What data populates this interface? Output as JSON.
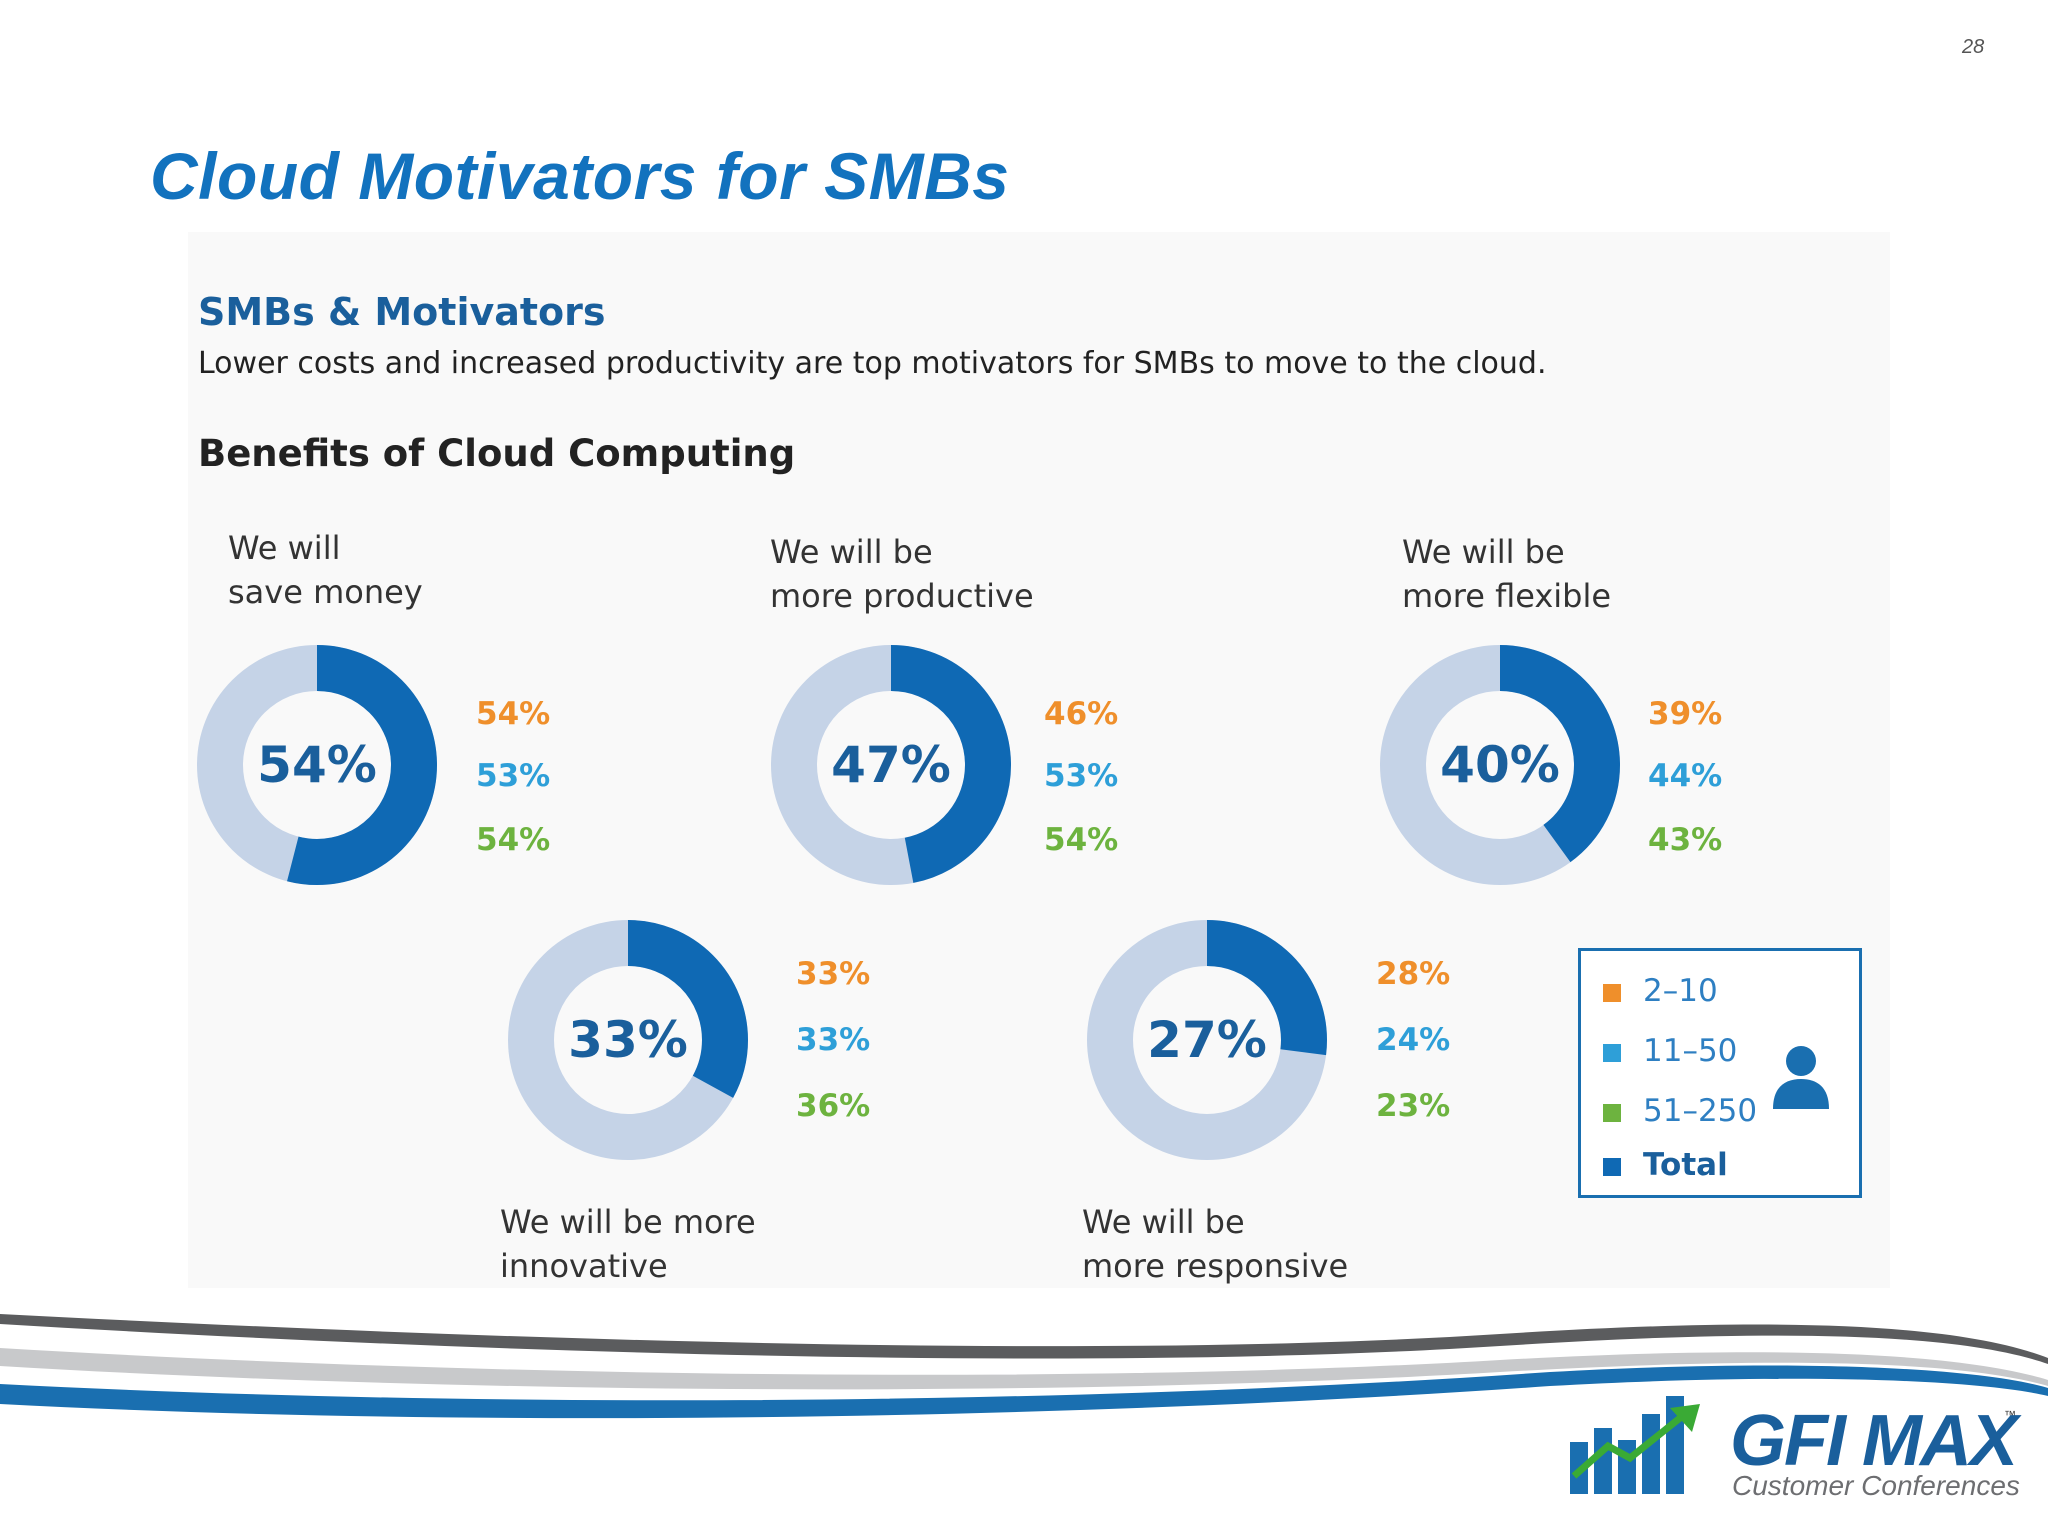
{
  "page_number": "28",
  "slide_title": "Cloud Motivators for SMBs",
  "figure": {
    "heading": "SMBs & Motivators",
    "subtitle": "Lower costs and increased productivity are top motivators for SMBs to move to the cloud.",
    "chart_heading": "Benefits of Cloud Computing"
  },
  "colors": {
    "total_arc": "#0f69b4",
    "remainder_arc": "#c5d3e7",
    "center_text": "#1a5f9c",
    "size_2_10": "#ef8f2b",
    "size_11_50": "#2e9fd8",
    "size_51_250": "#6db33f",
    "title": "#1272be"
  },
  "chart_data": {
    "type": "pie",
    "variant": "donut",
    "title": "Benefits of Cloud Computing",
    "legend": {
      "placement": "bottom-right",
      "entries": [
        "2–10",
        "11–50",
        "51–250",
        "Total"
      ],
      "icon": "person-icon"
    },
    "series_names": [
      "2–10",
      "11–50",
      "51–250",
      "Total"
    ],
    "donuts": [
      {
        "label": "We will\nsave money",
        "total": 54,
        "total_label": "54%",
        "segments": [
          {
            "group": "2–10",
            "value": 54,
            "label": "54%"
          },
          {
            "group": "11–50",
            "value": 53,
            "label": "53%"
          },
          {
            "group": "51–250",
            "value": 54,
            "label": "54%"
          }
        ]
      },
      {
        "label": "We will be\nmore productive",
        "total": 47,
        "total_label": "47%",
        "segments": [
          {
            "group": "2–10",
            "value": 46,
            "label": "46%"
          },
          {
            "group": "11–50",
            "value": 53,
            "label": "53%"
          },
          {
            "group": "51–250",
            "value": 54,
            "label": "54%"
          }
        ]
      },
      {
        "label": "We will be\nmore flexible",
        "total": 40,
        "total_label": "40%",
        "segments": [
          {
            "group": "2–10",
            "value": 39,
            "label": "39%"
          },
          {
            "group": "11–50",
            "value": 44,
            "label": "44%"
          },
          {
            "group": "51–250",
            "value": 43,
            "label": "43%"
          }
        ]
      },
      {
        "label": "We will be more\ninnovative",
        "total": 33,
        "total_label": "33%",
        "segments": [
          {
            "group": "2–10",
            "value": 33,
            "label": "33%"
          },
          {
            "group": "11–50",
            "value": 33,
            "label": "33%"
          },
          {
            "group": "51–250",
            "value": 36,
            "label": "36%"
          }
        ]
      },
      {
        "label": "We will be\nmore responsive",
        "total": 27,
        "total_label": "27%",
        "segments": [
          {
            "group": "2–10",
            "value": 28,
            "label": "28%"
          },
          {
            "group": "11–50",
            "value": 24,
            "label": "24%"
          },
          {
            "group": "51–250",
            "value": 23,
            "label": "23%"
          }
        ]
      }
    ]
  },
  "logo": {
    "name": "GFI MAX",
    "trademark": "™",
    "tagline": "Customer Conferences",
    "icon": "bar-chart-arrow-icon"
  }
}
